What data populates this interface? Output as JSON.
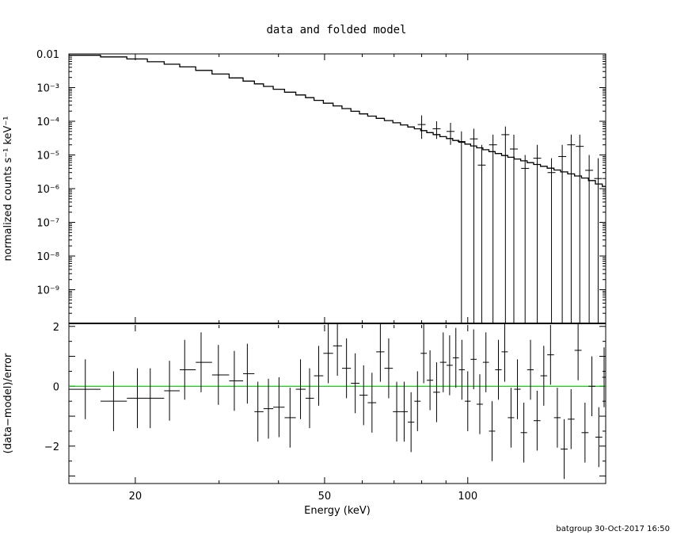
{
  "chart_data": [
    {
      "type": "line",
      "title": "data and folded model",
      "xlabel": "Energy (keV)",
      "ylabel": "normalized counts s⁻¹ keV⁻¹",
      "xscale": "log",
      "yscale": "log",
      "xlim": [
        14.5,
        195
      ],
      "ylim": [
        1e-10,
        0.01
      ],
      "grid": false,
      "ytick_labels": [
        "0.01",
        "10⁻³",
        "10⁻⁴",
        "10⁻⁵",
        "10⁻⁶",
        "10⁻⁷",
        "10⁻⁸",
        "10⁻⁹"
      ],
      "ytick_values": [
        0.01,
        0.001,
        0.0001,
        1e-05,
        1e-06,
        1e-07,
        1e-08,
        1e-09
      ],
      "model": {
        "energy": [
          14.5,
          17,
          20,
          25,
          30,
          35,
          40,
          45,
          50,
          55,
          60,
          70,
          80,
          90,
          100,
          120,
          140,
          160,
          180,
          195
        ],
        "values": [
          0.0095,
          0.0087,
          0.0072,
          0.0045,
          0.0026,
          0.0015,
          0.0009,
          0.00058,
          0.00037,
          0.00025,
          0.00017,
          9.5e-05,
          5.5e-05,
          3.3e-05,
          2.1e-05,
          9.5e-06,
          5.2e-06,
          3.1e-06,
          1.9e-06,
          1.1e-06
        ]
      },
      "data_points": [
        {
          "x": 80,
          "y": 8e-05,
          "ylo": 3e-05,
          "yhi": 0.00015
        },
        {
          "x": 86,
          "y": 6e-05,
          "ylo": 3e-05,
          "yhi": 0.0001
        },
        {
          "x": 92,
          "y": 5e-05,
          "ylo": 2e-05,
          "yhi": 9e-05
        },
        {
          "x": 97,
          "y": 2.5e-05,
          "ylo": 1e-10,
          "yhi": 5e-05
        },
        {
          "x": 103,
          "y": 3e-05,
          "ylo": 1e-10,
          "yhi": 6e-05
        },
        {
          "x": 107,
          "y": 5e-06,
          "ylo": 1e-10,
          "yhi": 2e-05
        },
        {
          "x": 113,
          "y": 2e-05,
          "ylo": 1e-10,
          "yhi": 4e-05
        },
        {
          "x": 120,
          "y": 4e-05,
          "ylo": 1e-10,
          "yhi": 7e-05
        },
        {
          "x": 125,
          "y": 1.5e-05,
          "ylo": 1e-10,
          "yhi": 4e-05
        },
        {
          "x": 132,
          "y": 4e-06,
          "ylo": 1e-10,
          "yhi": 1e-05
        },
        {
          "x": 140,
          "y": 8e-06,
          "ylo": 1e-10,
          "yhi": 2e-05
        },
        {
          "x": 150,
          "y": 3e-06,
          "ylo": 1e-10,
          "yhi": 8e-06
        },
        {
          "x": 158,
          "y": 9e-06,
          "ylo": 1e-10,
          "yhi": 2e-05
        },
        {
          "x": 165,
          "y": 2e-05,
          "ylo": 1e-10,
          "yhi": 4e-05
        },
        {
          "x": 172,
          "y": 1.8e-05,
          "ylo": 1e-10,
          "yhi": 4e-05
        },
        {
          "x": 180,
          "y": 3.5e-06,
          "ylo": 1e-10,
          "yhi": 1e-05
        },
        {
          "x": 188,
          "y": 2e-06,
          "ylo": 1e-10,
          "yhi": 8e-06
        }
      ]
    },
    {
      "type": "scatter",
      "xlabel": "Energy (keV)",
      "ylabel": "(data−model)/error",
      "xscale": "log",
      "xlim": [
        14.5,
        195
      ],
      "ylim": [
        -3.25,
        2.1
      ],
      "xtick_values": [
        20,
        50,
        100
      ],
      "xtick_labels": [
        "20",
        "50",
        "100"
      ],
      "ytick_values": [
        2,
        0,
        -2
      ],
      "ytick_labels": [
        "2",
        "0",
        "−2"
      ],
      "reference_line": {
        "y": 0,
        "color": "#00c000"
      },
      "points": [
        {
          "x": 15.7,
          "xlo": 14.5,
          "xhi": 16.9,
          "y": -0.1,
          "err": 1.0
        },
        {
          "x": 18.0,
          "xlo": 16.9,
          "xhi": 19.2,
          "y": -0.5,
          "err": 1.0
        },
        {
          "x": 20.2,
          "xlo": 19.2,
          "xhi": 21.2,
          "y": -0.4,
          "err": 1.0
        },
        {
          "x": 21.5,
          "xlo": 21.2,
          "xhi": 23.0,
          "y": -0.4,
          "err": 1.0
        },
        {
          "x": 23.6,
          "xlo": 23.0,
          "xhi": 24.8,
          "y": -0.15,
          "err": 1.0
        },
        {
          "x": 25.4,
          "xlo": 24.8,
          "xhi": 26.8,
          "y": 0.55,
          "err": 1.0
        },
        {
          "x": 27.5,
          "xlo": 26.8,
          "xhi": 29.0,
          "y": 0.8,
          "err": 1.0
        },
        {
          "x": 29.9,
          "xlo": 29.0,
          "xhi": 31.5,
          "y": 0.38,
          "err": 1.0
        },
        {
          "x": 32.3,
          "xlo": 31.5,
          "xhi": 33.7,
          "y": 0.18,
          "err": 1.0
        },
        {
          "x": 34.4,
          "xlo": 33.7,
          "xhi": 35.6,
          "y": 0.42,
          "err": 1.0
        },
        {
          "x": 36.2,
          "xlo": 35.6,
          "xhi": 37.2,
          "y": -0.85,
          "err": 1.0
        },
        {
          "x": 38.1,
          "xlo": 37.2,
          "xhi": 39.0,
          "y": -0.75,
          "err": 1.0
        },
        {
          "x": 40.1,
          "xlo": 39.0,
          "xhi": 41.2,
          "y": -0.7,
          "err": 1.0
        },
        {
          "x": 42.3,
          "xlo": 41.2,
          "xhi": 43.5,
          "y": -1.05,
          "err": 1.0
        },
        {
          "x": 44.5,
          "xlo": 43.5,
          "xhi": 45.6,
          "y": -0.1,
          "err": 1.0
        },
        {
          "x": 46.5,
          "xlo": 45.6,
          "xhi": 47.5,
          "y": -0.4,
          "err": 1.0
        },
        {
          "x": 48.6,
          "xlo": 47.5,
          "xhi": 49.7,
          "y": 0.35,
          "err": 1.0
        },
        {
          "x": 50.9,
          "xlo": 49.7,
          "xhi": 52.1,
          "y": 1.1,
          "err": 1.0
        },
        {
          "x": 53.2,
          "xlo": 52.1,
          "xhi": 54.4,
          "y": 1.35,
          "err": 1.0
        },
        {
          "x": 55.6,
          "xlo": 54.4,
          "xhi": 56.8,
          "y": 0.6,
          "err": 1.0
        },
        {
          "x": 58.0,
          "xlo": 56.8,
          "xhi": 59.2,
          "y": 0.1,
          "err": 1.0
        },
        {
          "x": 60.4,
          "xlo": 59.2,
          "xhi": 61.6,
          "y": -0.3,
          "err": 1.0
        },
        {
          "x": 62.9,
          "xlo": 61.6,
          "xhi": 64.2,
          "y": -0.55,
          "err": 1.0
        },
        {
          "x": 65.5,
          "xlo": 64.2,
          "xhi": 66.8,
          "y": 1.15,
          "err": 1.0
        },
        {
          "x": 68.2,
          "xlo": 66.8,
          "xhi": 69.6,
          "y": 0.6,
          "err": 1.0
        },
        {
          "x": 70.9,
          "xlo": 69.6,
          "xhi": 72.2,
          "y": -0.85,
          "err": 1.0
        },
        {
          "x": 73.5,
          "xlo": 72.2,
          "xhi": 74.8,
          "y": -0.85,
          "err": 1.0
        },
        {
          "x": 76.0,
          "xlo": 74.8,
          "xhi": 77.2,
          "y": -1.2,
          "err": 1.0
        },
        {
          "x": 78.4,
          "xlo": 77.2,
          "xhi": 79.6,
          "y": -0.5,
          "err": 1.0
        },
        {
          "x": 80.8,
          "xlo": 79.6,
          "xhi": 82.0,
          "y": 1.1,
          "err": 1.0
        },
        {
          "x": 83.3,
          "xlo": 82.0,
          "xhi": 84.6,
          "y": 0.2,
          "err": 1.0
        },
        {
          "x": 86.0,
          "xlo": 84.6,
          "xhi": 87.4,
          "y": -0.2,
          "err": 1.0
        },
        {
          "x": 88.8,
          "xlo": 87.4,
          "xhi": 90.2,
          "y": 0.8,
          "err": 1.0
        },
        {
          "x": 91.6,
          "xlo": 90.2,
          "xhi": 93.0,
          "y": 0.7,
          "err": 1.0
        },
        {
          "x": 94.4,
          "xlo": 93.0,
          "xhi": 95.8,
          "y": 0.95,
          "err": 1.0
        },
        {
          "x": 97.2,
          "xlo": 95.8,
          "xhi": 98.6,
          "y": 0.55,
          "err": 1.0
        },
        {
          "x": 100.0,
          "xlo": 98.6,
          "xhi": 101.4,
          "y": -0.5,
          "err": 1.0
        },
        {
          "x": 102.9,
          "xlo": 101.4,
          "xhi": 104.4,
          "y": 0.9,
          "err": 1.0
        },
        {
          "x": 106.0,
          "xlo": 104.4,
          "xhi": 107.6,
          "y": -0.6,
          "err": 1.0
        },
        {
          "x": 109.2,
          "xlo": 107.6,
          "xhi": 110.8,
          "y": 0.8,
          "err": 1.0
        },
        {
          "x": 112.5,
          "xlo": 110.8,
          "xhi": 114.2,
          "y": -1.5,
          "err": 1.0
        },
        {
          "x": 116.0,
          "xlo": 114.2,
          "xhi": 117.8,
          "y": 0.55,
          "err": 1.0
        },
        {
          "x": 119.6,
          "xlo": 117.8,
          "xhi": 121.4,
          "y": 1.15,
          "err": 1.0
        },
        {
          "x": 123.3,
          "xlo": 121.4,
          "xhi": 125.2,
          "y": -1.05,
          "err": 1.0
        },
        {
          "x": 127.2,
          "xlo": 125.2,
          "xhi": 129.2,
          "y": -0.1,
          "err": 1.0
        },
        {
          "x": 131.2,
          "xlo": 129.2,
          "xhi": 133.3,
          "y": -1.55,
          "err": 1.0
        },
        {
          "x": 135.5,
          "xlo": 133.3,
          "xhi": 137.6,
          "y": 0.55,
          "err": 1.0
        },
        {
          "x": 139.9,
          "xlo": 137.6,
          "xhi": 142.2,
          "y": -1.15,
          "err": 1.0
        },
        {
          "x": 144.5,
          "xlo": 142.2,
          "xhi": 146.9,
          "y": 0.35,
          "err": 1.0
        },
        {
          "x": 149.3,
          "xlo": 146.9,
          "xhi": 151.8,
          "y": 1.05,
          "err": 1.0
        },
        {
          "x": 154.3,
          "xlo": 151.8,
          "xhi": 156.8,
          "y": -1.05,
          "err": 1.0
        },
        {
          "x": 159.5,
          "xlo": 156.8,
          "xhi": 162.2,
          "y": -2.1,
          "err": 1.0
        },
        {
          "x": 164.9,
          "xlo": 162.2,
          "xhi": 167.7,
          "y": -1.1,
          "err": 1.0
        },
        {
          "x": 170.6,
          "xlo": 167.7,
          "xhi": 173.5,
          "y": 1.2,
          "err": 1.0
        },
        {
          "x": 176.4,
          "xlo": 173.5,
          "xhi": 179.4,
          "y": -1.55,
          "err": 1.0
        },
        {
          "x": 182.4,
          "xlo": 179.4,
          "xhi": 185.5,
          "y": -0.0,
          "err": 1.0
        },
        {
          "x": 188.6,
          "xlo": 185.5,
          "xhi": 191.8,
          "y": -1.7,
          "err": 1.0
        },
        {
          "x": 193.5,
          "xlo": 191.8,
          "xhi": 195.0,
          "y": 0.3,
          "err": 1.0
        }
      ]
    }
  ],
  "footer": "batgroup 30-Oct-2017 16:50"
}
